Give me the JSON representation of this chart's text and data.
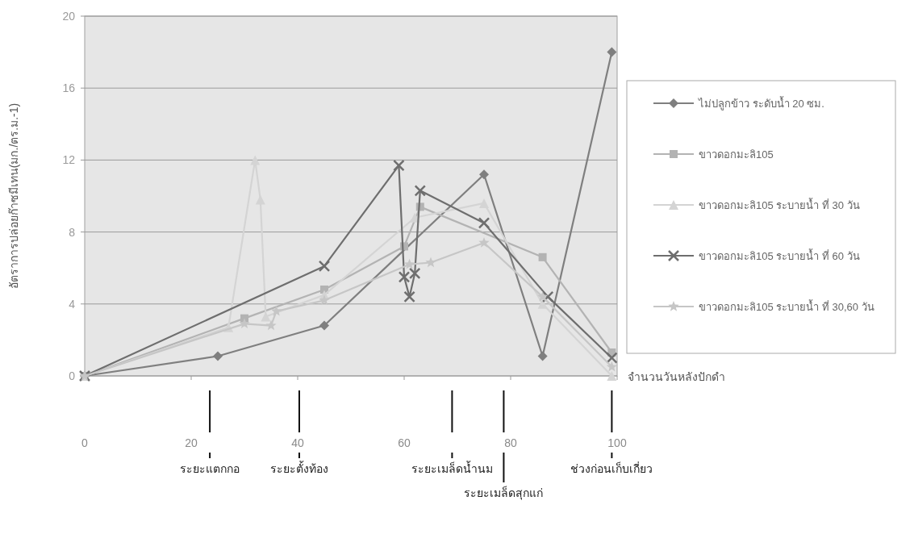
{
  "chart_data": {
    "type": "line",
    "ylabel": "อัตราการปล่อยก๊าซมีเทน(มก./ตร.ม.-1)",
    "xlabel": "จำนวนวันหลังปักดำ",
    "xlim": [
      0,
      100
    ],
    "xticks": [
      0,
      20,
      40,
      60,
      80,
      100
    ],
    "ylim": [
      0,
      20
    ],
    "yticks": [
      0,
      4,
      8,
      12,
      16,
      20
    ],
    "grid": "y",
    "legend": "right",
    "series": [
      {
        "name": "ไม่ปลูกข้าว ระดับน้ำ 20 ซม.",
        "color": "#7f7f7f",
        "marker": "diamond",
        "x": [
          0,
          25,
          45,
          75,
          86,
          99
        ],
        "values": [
          0,
          1.1,
          2.8,
          11.2,
          1.1,
          18
        ]
      },
      {
        "name": "ขาวดอกมะลิ105",
        "color": "#b3b3b3",
        "marker": "square",
        "x": [
          0,
          30,
          45,
          60,
          63,
          86,
          99
        ],
        "values": [
          0,
          3.2,
          4.8,
          7.2,
          9.4,
          6.6,
          1.3
        ]
      },
      {
        "name": "ขาวดอกมะลิ105 ระบายน้ำ ที่ 30 วัน",
        "color": "#d4d4d4",
        "marker": "triangle",
        "x": [
          0,
          27,
          32,
          33,
          34,
          45,
          62,
          75,
          86,
          99
        ],
        "values": [
          0,
          2.7,
          12,
          9.8,
          3.3,
          4.5,
          8.8,
          9.6,
          4,
          0
        ]
      },
      {
        "name": "ขาวดอกมะลิ105 ระบายน้ำ ที่ 60 วัน",
        "color": "#6e6e6e",
        "marker": "cross",
        "x": [
          0,
          45,
          59,
          60,
          61,
          62,
          63,
          75,
          87,
          99
        ],
        "values": [
          0,
          6.1,
          11.7,
          5.5,
          4.4,
          5.7,
          10.3,
          8.5,
          4.4,
          1.0
        ]
      },
      {
        "name": "ขาวดอกมะลิ105 ระบายน้ำ ที่ 30,60 วัน",
        "color": "#c6c6c6",
        "marker": "star",
        "x": [
          0,
          30,
          35,
          36,
          45,
          61,
          65,
          75,
          86,
          99
        ],
        "values": [
          0,
          2.9,
          2.8,
          3.6,
          4.2,
          6.2,
          6.3,
          7.4,
          4.4,
          0.5
        ]
      }
    ],
    "ref_lines": [
      {
        "axis": "x",
        "value": 23.5,
        "label": "ระยะแตกกอ"
      },
      {
        "axis": "x",
        "value": 40.3,
        "label": "ระยะตั้งท้อง"
      },
      {
        "axis": "x",
        "value": 69,
        "label": "ระยะเมล็ดน้ำนม"
      },
      {
        "axis": "x",
        "value": 78.7,
        "label": "ระยะเมล็ดสุกแก่"
      },
      {
        "axis": "x",
        "value": 99,
        "label": "ช่วงก่อนเก็บเกี่ยว"
      }
    ]
  }
}
